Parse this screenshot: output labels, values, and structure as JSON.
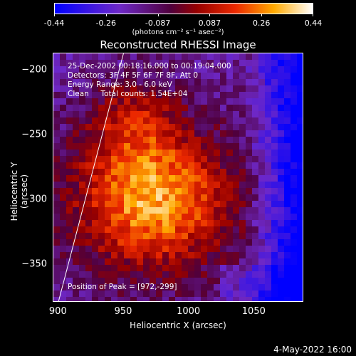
{
  "colorbar": {
    "ticks": [
      "-0.44",
      "-0.26",
      "-0.087",
      "0.087",
      "0.26",
      "0.44"
    ],
    "unit_label": "(photons cm⁻² s⁻¹ asec⁻²)"
  },
  "title": "Reconstructed RHESSI Image",
  "info": {
    "line1": "25-Dec-2002 00:18:16.000 to 00:19:04.000",
    "line2": "Detectors: 3F 4F 5F 6F 7F 8F, Att 0",
    "line3": "Energy Range: 3.0 - 6.0 keV",
    "line4": "Clean     Total counts: 1.54E+04"
  },
  "peak_label": "Position of Peak = [972,-299]",
  "axes": {
    "xlabel": "Heliocentric X (arcsec)",
    "ylabel": "Heliocentric Y (arcsec)",
    "xticks": [
      "900",
      "950",
      "1000",
      "1050"
    ],
    "yticks": [
      "-200",
      "-250",
      "-300",
      "-350"
    ]
  },
  "footer": {
    "date": "4-May-2022 16:00"
  },
  "chart_data": {
    "type": "heatmap",
    "title": "Reconstructed RHESSI Image",
    "xlabel": "Heliocentric X (arcsec)",
    "ylabel": "Heliocentric Y (arcsec)",
    "xlim": [
      896,
      1088
    ],
    "ylim": [
      -379,
      -187
    ],
    "peak": [
      972,
      -299
    ],
    "colorbar_range": [
      -0.44,
      0.44
    ],
    "colormap": "blue-purple-red-orange-yellow-white",
    "limb_line": {
      "x": [
        900,
        950
      ],
      "y": [
        -379,
        -187
      ]
    }
  }
}
